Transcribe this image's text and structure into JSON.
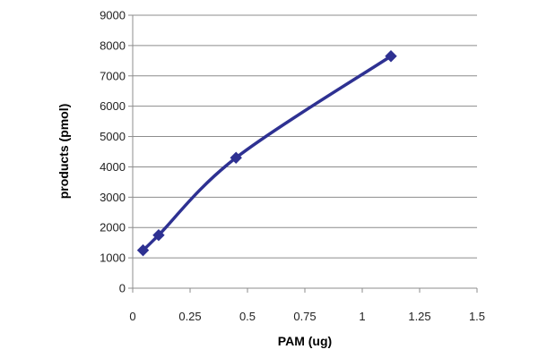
{
  "chart_data": {
    "type": "line",
    "title": "",
    "xlabel": "PAM (ug)",
    "ylabel": "products (pmol)",
    "xlim": [
      0,
      1.5
    ],
    "ylim": [
      0,
      9000
    ],
    "x_ticks": [
      "0",
      "0.25",
      "0.5",
      "0.75",
      "1",
      "1.25",
      "1.5"
    ],
    "y_ticks": [
      "0",
      "1000",
      "2000",
      "3000",
      "4000",
      "5000",
      "6000",
      "7000",
      "8000",
      "9000"
    ],
    "grid": "horizontal",
    "legend": "none",
    "series": [
      {
        "x": [
          0.045,
          0.113,
          0.45,
          1.125
        ],
        "y": [
          1250,
          1750,
          4300,
          7650
        ],
        "color": "#2E3192",
        "marker": "diamond",
        "smooth": true
      }
    ]
  }
}
